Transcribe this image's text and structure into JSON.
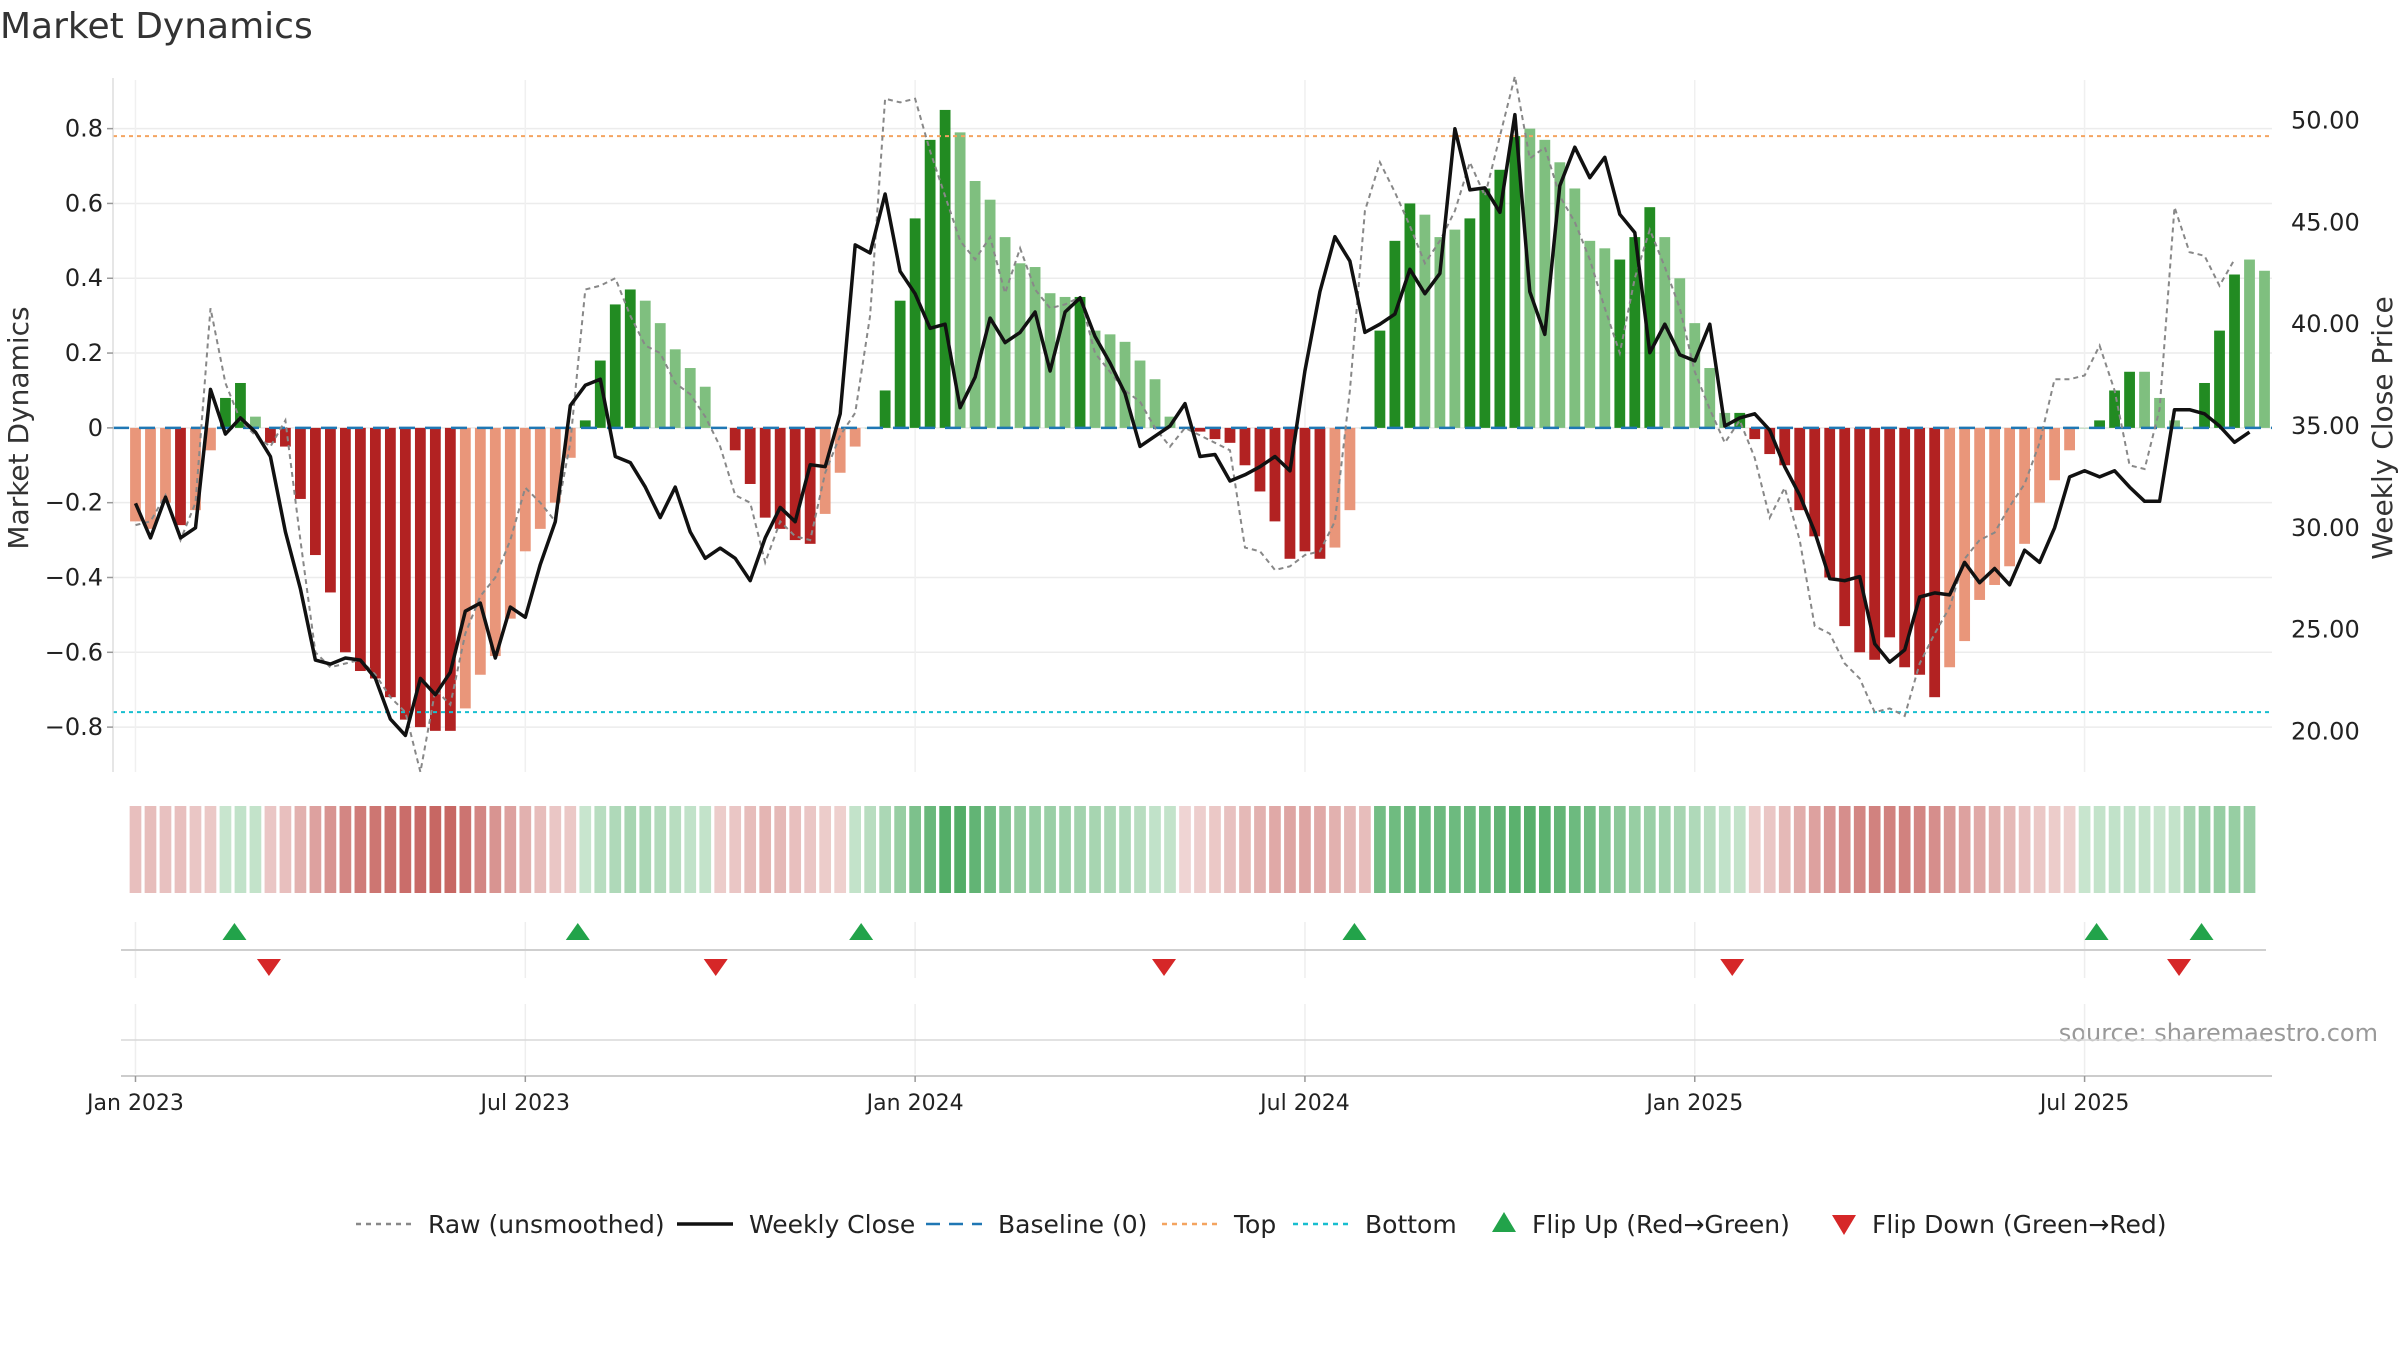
{
  "chart_data": {
    "type": "bar",
    "title": "Market Dynamics",
    "ylabel_left": "Market Dynamics",
    "ylabel_right": "Weekly Close Price",
    "ylim_left": [
      -0.92,
      0.93
    ],
    "ylim_right": [
      18.0,
      52.0
    ],
    "yticks_left": [
      "0.8",
      "0.6",
      "0.4",
      "0.2",
      "0",
      "−0.2",
      "−0.4",
      "−0.6",
      "−0.8"
    ],
    "yticks_left_values": [
      0.8,
      0.6,
      0.4,
      0.2,
      0,
      -0.2,
      -0.4,
      -0.6,
      -0.8
    ],
    "yticks_right": [
      "50.00",
      "45.00",
      "40.00",
      "35.00",
      "30.00",
      "25.00",
      "20.00"
    ],
    "yticks_right_values": [
      50,
      45,
      40,
      35,
      30,
      25,
      20
    ],
    "xticks": [
      "Jan 2023",
      "Jul 2023",
      "Jan 2024",
      "Jul 2024",
      "Jan 2025",
      "Jul 2025"
    ],
    "xtick_weeks": [
      0,
      26,
      52,
      78,
      104,
      130
    ],
    "top_line": 0.78,
    "bottom_line": -0.76,
    "grid": true,
    "source": "source: sharemaestro.com",
    "colors": {
      "strong_green": "#228B22",
      "light_green": "#7FBF7F",
      "strong_red": "#B22222",
      "light_red": "#E9967A",
      "raw_line": "#888888",
      "close_line": "#111111",
      "baseline": "#1f77b4",
      "top": "#F4A460",
      "bottom": "#17BECF",
      "flip_up": "#22A34A",
      "flip_down": "#D62728"
    },
    "weeks_count": 144,
    "start_week_offset": -1.5,
    "bars": [
      -0.25,
      -0.27,
      -0.2,
      -0.26,
      -0.22,
      -0.06,
      0.08,
      0.12,
      0.03,
      -0.04,
      -0.05,
      -0.19,
      -0.34,
      -0.44,
      -0.6,
      -0.65,
      -0.67,
      -0.72,
      -0.78,
      -0.8,
      -0.81,
      -0.81,
      -0.75,
      -0.66,
      -0.61,
      -0.51,
      -0.33,
      -0.27,
      -0.2,
      -0.08,
      0.02,
      0.18,
      0.33,
      0.37,
      0.34,
      0.28,
      0.21,
      0.16,
      0.11,
      0.0,
      -0.06,
      -0.15,
      -0.24,
      -0.27,
      -0.3,
      -0.31,
      -0.23,
      -0.12,
      -0.05,
      0.0,
      0.1,
      0.34,
      0.56,
      0.77,
      0.85,
      0.79,
      0.66,
      0.61,
      0.51,
      0.44,
      0.43,
      0.36,
      0.35,
      0.35,
      0.26,
      0.25,
      0.23,
      0.18,
      0.13,
      0.03,
      0.0,
      -0.01,
      -0.03,
      -0.04,
      -0.1,
      -0.17,
      -0.25,
      -0.35,
      -0.33,
      -0.35,
      -0.32,
      -0.22,
      0.0,
      0.26,
      0.5,
      0.6,
      0.57,
      0.51,
      0.53,
      0.56,
      0.64,
      0.69,
      0.78,
      0.8,
      0.77,
      0.71,
      0.64,
      0.5,
      0.48,
      0.45,
      0.51,
      0.59,
      0.51,
      0.4,
      0.28,
      0.16,
      0.04,
      0.04,
      -0.03,
      -0.07,
      -0.1,
      -0.22,
      -0.29,
      -0.4,
      -0.53,
      -0.6,
      -0.62,
      -0.56,
      -0.64,
      -0.66,
      -0.72,
      -0.64,
      -0.57,
      -0.46,
      -0.42,
      -0.37,
      -0.31,
      -0.2,
      -0.14,
      -0.06,
      0.0,
      0.02,
      0.1,
      0.15,
      0.15,
      0.08,
      0.02,
      0.0,
      0.12,
      0.26,
      0.41,
      0.45,
      0.42
    ],
    "bar_shades": [
      "light",
      "light",
      "light",
      "strong",
      "light",
      "light",
      "strong",
      "strong",
      "light",
      "strong",
      "strong",
      "strong",
      "strong",
      "strong",
      "strong",
      "strong",
      "strong",
      "strong",
      "strong",
      "strong",
      "strong",
      "strong",
      "light",
      "light",
      "light",
      "light",
      "light",
      "light",
      "light",
      "light",
      "strong",
      "strong",
      "strong",
      "strong",
      "light",
      "light",
      "light",
      "light",
      "light",
      "light",
      "strong",
      "strong",
      "strong",
      "strong",
      "strong",
      "strong",
      "light",
      "light",
      "light",
      "light",
      "strong",
      "strong",
      "strong",
      "strong",
      "strong",
      "light",
      "light",
      "light",
      "light",
      "light",
      "light",
      "light",
      "light",
      "strong",
      "light",
      "light",
      "light",
      "light",
      "light",
      "light",
      "light",
      "strong",
      "strong",
      "strong",
      "strong",
      "strong",
      "strong",
      "strong",
      "strong",
      "strong",
      "light",
      "light",
      "light",
      "strong",
      "strong",
      "strong",
      "light",
      "light",
      "light",
      "strong",
      "strong",
      "strong",
      "strong",
      "light",
      "light",
      "light",
      "light",
      "light",
      "light",
      "strong",
      "strong",
      "strong",
      "light",
      "light",
      "light",
      "light",
      "light",
      "strong",
      "strong",
      "strong",
      "strong",
      "strong",
      "strong",
      "strong",
      "strong",
      "strong",
      "strong",
      "strong",
      "strong",
      "strong",
      "strong",
      "light",
      "light",
      "light",
      "light",
      "light",
      "light",
      "light",
      "light",
      "light",
      "light",
      "strong",
      "strong",
      "strong",
      "light",
      "light",
      "light",
      "strong",
      "strong",
      "strong",
      "strong",
      "light"
    ],
    "raw_series": [
      -0.26,
      -0.25,
      -0.18,
      -0.3,
      -0.2,
      0.32,
      0.12,
      0.02,
      -0.02,
      -0.05,
      0.02,
      -0.3,
      -0.6,
      -0.64,
      -0.63,
      -0.62,
      -0.66,
      -0.72,
      -0.76,
      -0.92,
      -0.7,
      -0.74,
      -0.55,
      -0.45,
      -0.4,
      -0.3,
      -0.16,
      -0.2,
      -0.25,
      -0.04,
      0.37,
      0.38,
      0.4,
      0.3,
      0.22,
      0.2,
      0.12,
      0.09,
      0.03,
      -0.05,
      -0.18,
      -0.2,
      -0.36,
      -0.25,
      -0.29,
      -0.3,
      -0.12,
      -0.02,
      0.04,
      0.3,
      0.88,
      0.87,
      0.88,
      0.74,
      0.62,
      0.5,
      0.45,
      0.51,
      0.36,
      0.48,
      0.37,
      0.32,
      0.33,
      0.35,
      0.2,
      0.15,
      0.1,
      0.07,
      0.0,
      -0.05,
      0.0,
      -0.02,
      -0.04,
      -0.06,
      -0.32,
      -0.33,
      -0.38,
      -0.37,
      -0.34,
      -0.33,
      -0.25,
      0.1,
      0.58,
      0.71,
      0.63,
      0.54,
      0.44,
      0.5,
      0.58,
      0.71,
      0.62,
      0.78,
      0.94,
      0.72,
      0.75,
      0.62,
      0.55,
      0.45,
      0.32,
      0.2,
      0.4,
      0.53,
      0.43,
      0.32,
      0.15,
      0.05,
      -0.04,
      0.02,
      -0.08,
      -0.24,
      -0.16,
      -0.3,
      -0.53,
      -0.55,
      -0.63,
      -0.67,
      -0.76,
      -0.75,
      -0.77,
      -0.63,
      -0.55,
      -0.48,
      -0.35,
      -0.3,
      -0.28,
      -0.21,
      -0.15,
      -0.04,
      0.13,
      0.13,
      0.14,
      0.22,
      0.1,
      -0.1,
      -0.11,
      0.05,
      0.59,
      0.47,
      0.46,
      0.38,
      0.45
    ],
    "close_series": [
      31.2,
      29.5,
      31.5,
      29.5,
      30.0,
      36.8,
      34.6,
      35.4,
      34.7,
      33.5,
      29.8,
      27.0,
      23.5,
      23.3,
      23.6,
      23.5,
      22.6,
      20.6,
      19.8,
      22.6,
      21.8,
      22.9,
      25.9,
      26.3,
      23.6,
      26.1,
      25.6,
      28.2,
      30.3,
      36.0,
      37.0,
      37.3,
      33.5,
      33.2,
      32.0,
      30.5,
      32.0,
      29.8,
      28.5,
      29.0,
      28.5,
      27.4,
      29.5,
      31.0,
      30.3,
      33.1,
      33.0,
      35.6,
      43.9,
      43.5,
      46.4,
      42.6,
      41.5,
      39.8,
      40.0,
      35.9,
      37.4,
      40.3,
      39.1,
      39.6,
      40.6,
      37.7,
      40.6,
      41.3,
      39.4,
      38.1,
      36.6,
      34.0,
      34.5,
      35.0,
      36.1,
      33.5,
      33.6,
      32.3,
      32.6,
      33.0,
      33.5,
      32.8,
      37.7,
      41.6,
      44.3,
      43.1,
      39.6,
      40.0,
      40.5,
      42.7,
      41.5,
      42.5,
      49.6,
      46.6,
      46.7,
      45.5,
      50.3,
      41.6,
      39.5,
      46.8,
      48.7,
      47.2,
      48.2,
      45.4,
      44.5,
      38.6,
      40.0,
      38.5,
      38.2,
      40.0,
      35.0,
      35.4,
      35.6,
      34.8,
      33.0,
      31.6,
      29.8,
      27.5,
      27.4,
      27.6,
      24.3,
      23.4,
      24.0,
      26.6,
      26.8,
      26.7,
      28.3,
      27.3,
      28.0,
      27.2,
      28.9,
      28.3,
      30.0,
      32.5,
      32.8,
      32.5,
      32.8,
      32.0,
      31.3,
      31.3,
      35.8,
      35.8,
      35.6,
      35.0,
      34.2,
      34.7
    ],
    "strip_intensity": [
      -0.33,
      -0.34,
      -0.32,
      -0.33,
      -0.3,
      -0.28,
      0.26,
      0.3,
      0.28,
      -0.3,
      -0.33,
      -0.4,
      -0.48,
      -0.55,
      -0.62,
      -0.67,
      -0.71,
      -0.73,
      -0.75,
      -0.77,
      -0.78,
      -0.78,
      -0.72,
      -0.62,
      -0.55,
      -0.48,
      -0.4,
      -0.34,
      -0.3,
      -0.28,
      0.26,
      0.34,
      0.38,
      0.42,
      0.4,
      0.37,
      0.34,
      0.3,
      0.28,
      -0.26,
      -0.3,
      -0.34,
      -0.38,
      -0.36,
      -0.33,
      -0.3,
      -0.26,
      -0.24,
      0.28,
      0.34,
      0.4,
      0.5,
      0.62,
      0.72,
      0.82,
      0.82,
      0.75,
      0.66,
      0.58,
      0.52,
      0.5,
      0.48,
      0.46,
      0.44,
      0.42,
      0.4,
      0.38,
      0.34,
      0.3,
      0.28,
      -0.22,
      -0.25,
      -0.28,
      -0.32,
      -0.36,
      -0.4,
      -0.44,
      -0.46,
      -0.46,
      -0.44,
      -0.4,
      -0.36,
      -0.34,
      0.66,
      0.68,
      0.7,
      0.7,
      0.7,
      0.7,
      0.7,
      0.72,
      0.75,
      0.78,
      0.8,
      0.78,
      0.74,
      0.7,
      0.66,
      0.6,
      0.55,
      0.5,
      0.48,
      0.45,
      0.42,
      0.38,
      0.34,
      0.3,
      0.28,
      -0.26,
      -0.3,
      -0.36,
      -0.42,
      -0.48,
      -0.54,
      -0.58,
      -0.62,
      -0.64,
      -0.64,
      -0.64,
      -0.62,
      -0.58,
      -0.52,
      -0.48,
      -0.44,
      -0.4,
      -0.36,
      -0.32,
      -0.28,
      -0.26,
      -0.24,
      0.26,
      0.28,
      0.3,
      0.3,
      0.28,
      0.26,
      0.28,
      0.42,
      0.48,
      0.5,
      0.5,
      0.48
    ],
    "flip_up_weeks": [
      6.6,
      29.5,
      48.4,
      81.3,
      130.8,
      137.8
    ],
    "flip_down_weeks": [
      8.9,
      38.7,
      68.6,
      106.5,
      136.3
    ],
    "legend": [
      {
        "label": "Raw (unsmoothed)",
        "kind": "line-dotted",
        "color": "#888888"
      },
      {
        "label": "Weekly Close",
        "kind": "line-solid",
        "color": "#111111"
      },
      {
        "label": "Baseline (0)",
        "kind": "line-dashed",
        "color": "#1f77b4"
      },
      {
        "label": "Top",
        "kind": "line-dotted",
        "color": "#F4A460"
      },
      {
        "label": "Bottom",
        "kind": "line-dotted",
        "color": "#17BECF"
      },
      {
        "label": "Flip Up (Red→Green)",
        "kind": "tri-up",
        "color": "#22A34A"
      },
      {
        "label": "Flip Down (Green→Red)",
        "kind": "tri-down",
        "color": "#D62728"
      }
    ]
  }
}
